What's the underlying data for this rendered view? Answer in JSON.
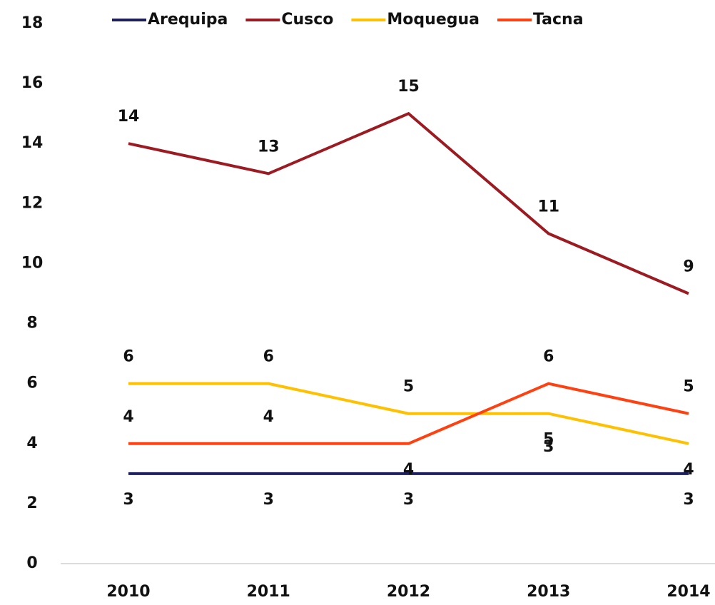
{
  "chart_data": {
    "type": "line",
    "categories": [
      "2010",
      "2011",
      "2012",
      "2013",
      "2014"
    ],
    "series": [
      {
        "name": "Arequipa",
        "color": "#1c1f5c",
        "values": [
          3,
          3,
          3,
          3,
          3
        ]
      },
      {
        "name": "Cusco",
        "color": "#9c1b22",
        "values": [
          14,
          13,
          15,
          11,
          9
        ]
      },
      {
        "name": "Moquegua",
        "color": "#ffc000",
        "values": [
          6,
          6,
          5,
          5,
          4
        ]
      },
      {
        "name": "Tacna",
        "color": "#ff4010",
        "values": [
          4,
          4,
          4,
          6,
          5
        ]
      }
    ],
    "ylim": [
      0,
      18
    ],
    "yticks": [
      0,
      2,
      4,
      6,
      8,
      10,
      12,
      14,
      16,
      18
    ],
    "grid": false,
    "legend": "top"
  }
}
